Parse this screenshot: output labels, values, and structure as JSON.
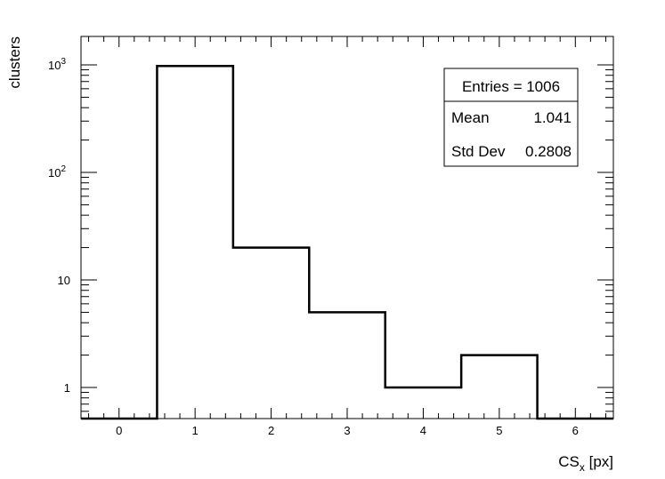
{
  "chart_data": {
    "type": "histogram",
    "xlabel": "CS",
    "xlabel_sub": "x",
    "xlabel_unit": " [px]",
    "ylabel": "clusters",
    "x_scale": "linear",
    "y_scale": "log",
    "xlim": [
      -0.5,
      6.5
    ],
    "ylim": [
      0.5,
      2000
    ],
    "x_ticks": [
      "0",
      "1",
      "2",
      "3",
      "4",
      "5",
      "6"
    ],
    "y_ticks": [
      {
        "value": 1,
        "label": "1"
      },
      {
        "value": 10,
        "label": "10"
      },
      {
        "value": 100,
        "label": "10",
        "exp": "2"
      },
      {
        "value": 1000,
        "label": "10",
        "exp": "3"
      }
    ],
    "bins": [
      {
        "center": 0,
        "value": 0
      },
      {
        "center": 1,
        "value": 977
      },
      {
        "center": 2,
        "value": 20
      },
      {
        "center": 3,
        "value": 5
      },
      {
        "center": 4,
        "value": 1
      },
      {
        "center": 5,
        "value": 2
      },
      {
        "center": 6,
        "value": 0
      }
    ],
    "stats": {
      "entries_label": "Entries = 1006",
      "rows": [
        {
          "name": "Mean",
          "value": "1.041"
        },
        {
          "name": "Std Dev",
          "value": "0.2808"
        }
      ]
    },
    "grid": false,
    "legend": "none"
  }
}
